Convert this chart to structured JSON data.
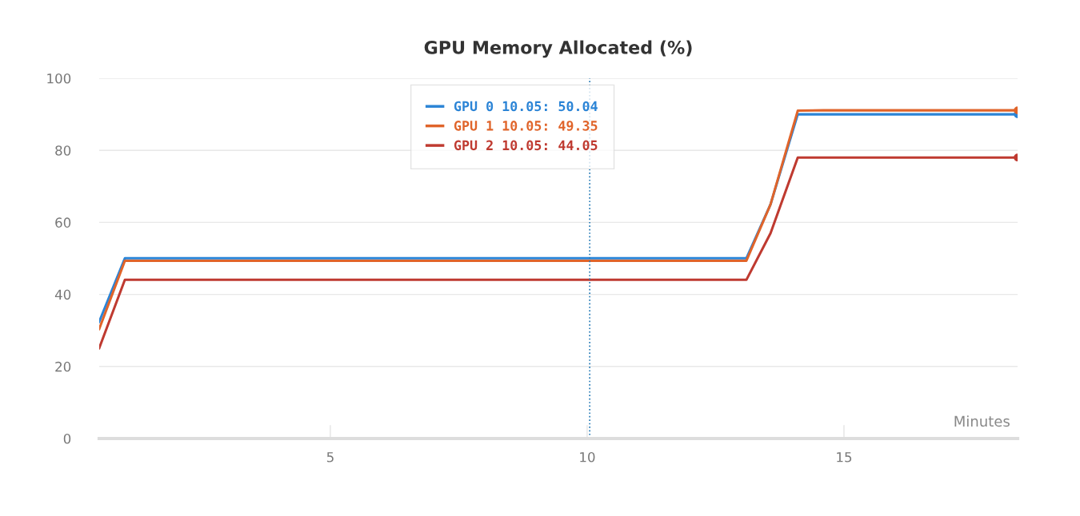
{
  "chart_data": {
    "type": "line",
    "title": "GPU Memory Allocated (%)",
    "xlabel": "Minutes",
    "xlim": [
      0.5,
      18.38
    ],
    "xticks": [
      5,
      10,
      15
    ],
    "ylim": [
      0,
      100
    ],
    "yticks": [
      0,
      20,
      40,
      60,
      80,
      100
    ],
    "grid": "y",
    "legend": "top",
    "marker": "none",
    "line_style": "solid",
    "ref_lines": [
      {
        "axis": "x",
        "value": 10.05,
        "label": null,
        "color": "#1f77b4",
        "line_style": "dotted"
      }
    ],
    "series": [
      {
        "name": "GPU 0 10.05: 50.04",
        "color": "#2b84d6",
        "x": [
          0.5,
          1.0,
          13.1,
          13.57,
          14.1,
          18.38
        ],
        "values": [
          32.4,
          50.04,
          50.04,
          65,
          90,
          90
        ]
      },
      {
        "name": "GPU 1 10.05: 49.35",
        "color": "#e0642a",
        "x": [
          0.5,
          1.0,
          13.1,
          13.57,
          14.1,
          14.6,
          18.38
        ],
        "values": [
          30.4,
          49.35,
          49.35,
          65,
          91,
          91.1,
          91.1
        ]
      },
      {
        "name": "GPU 2 10.05: 44.05",
        "color": "#bf3a30",
        "x": [
          0.5,
          1.0,
          13.1,
          13.57,
          14.1,
          18.38
        ],
        "values": [
          25.1,
          44.05,
          44.05,
          57,
          78,
          78
        ]
      }
    ]
  }
}
